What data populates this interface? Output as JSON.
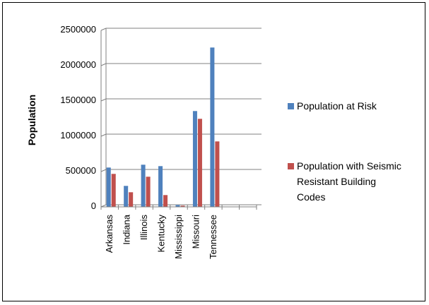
{
  "chart_data": {
    "type": "bar",
    "title": "",
    "xlabel": "",
    "ylabel": "Population",
    "ylim": [
      0,
      2500000
    ],
    "yticks": [
      "0",
      "500000",
      "1000000",
      "1500000",
      "2000000",
      "2500000"
    ],
    "ytick_values": [
      0,
      500000,
      1000000,
      1500000,
      2000000,
      2500000
    ],
    "categories": [
      "Arkansas",
      "Indiana",
      "Illinois",
      "Kentucky",
      "Mississippi",
      "Missouri",
      "Tennessee"
    ],
    "empty_slots": 2,
    "grid": true,
    "legend_position": "right",
    "series": [
      {
        "name": "Population at Risk",
        "color": "#4f81bd",
        "values": [
          550000,
          290000,
          590000,
          570000,
          20000,
          1350000,
          2250000
        ]
      },
      {
        "name": "Population with Seismic Resistant Building Codes",
        "legend_lines": [
          "Population with Seismic",
          "Resistant Building",
          "Codes"
        ],
        "color": "#c0504d",
        "values": [
          460000,
          200000,
          420000,
          160000,
          10000,
          1240000,
          920000
        ]
      }
    ]
  }
}
